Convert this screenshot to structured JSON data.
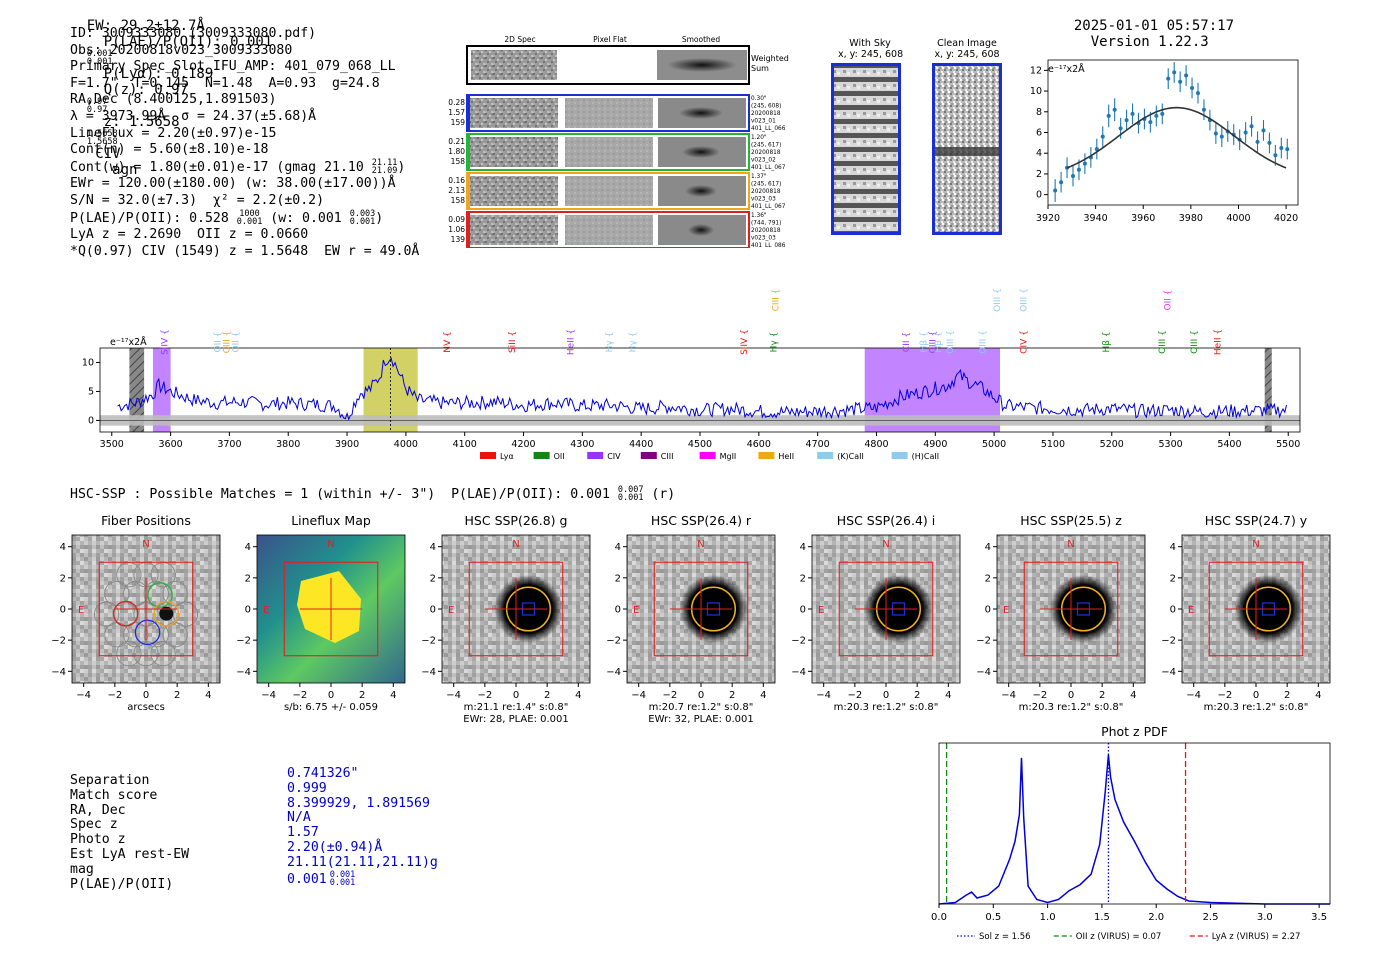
{
  "header": {
    "ew": "EW: 29.2±12.7Å",
    "plae_ratio": "P(LAE)/P(OII): 0.001",
    "plae_hi": "0.001",
    "plae_lo": "0.001",
    "plya": "P(Lyα): 0.189",
    "qz": "Q(z): 0.97",
    "qz_hi": "0.97",
    "qz_lo": "0.97",
    "z": "z: 1.5658",
    "z_hi": "1.5658",
    "z_lo": "1.5658",
    "line": "CIV",
    "class": "agn",
    "timestamp": "2025-01-01 05:57:17",
    "version": "Version 1.22.3"
  },
  "info_lines": {
    "id": "ID: 3009333080 (3009333080.pdf)",
    "obs": "Obs: 20200818v023_3009333080",
    "primary": "Primary Spec_Slot_IFU_AMP: 401_079_068_LL",
    "params": "F=1.7\"  T=0.145  N=1.48  A=0.93  g=24.8",
    "radec": "RA,Dec (8.400125,1.891503)",
    "lambda": "λ = 3973.99Å  σ = 24.37(±5.68)Å",
    "lineflux": "LineFlux = 2.20(±0.97)e-15",
    "contn": "Cont(n) = 5.60(±8.10)e-18",
    "contw": "Cont(w) = 1.80(±0.01)e-17 (gmag 21.10",
    "contw_hi": "21.11",
    "contw_lo": "21.09",
    "contw_end": ")",
    "ewr": "EWr = 120.00(±180.00) (w: 38.00(±17.00))Å",
    "sn": "S/N = 32.0(±7.3)  χ² = 2.2(±0.2)",
    "plae": "P(LAE)/P(OII): 0.528",
    "plae_hi": "1000",
    "plae_lo": "0.001",
    "plae_w": " (w: 0.001",
    "plae_w_hi": "0.003",
    "plae_w_lo": "0.001",
    "plae_end": ")",
    "lya_z": "LyA z = 2.2690  OII z = 0.0660",
    "civ": "*Q(0.97) CIV (1549) z = 1.5648  EW r = 49.0Å"
  },
  "cutouts": {
    "col_2d": "2D Spec",
    "col_flat": "Pixel Flat",
    "col_smooth": "Smoothed",
    "weighted_sum": "Weighted Sum",
    "rows": [
      {
        "n1": "0.28",
        "n2": "1.57",
        "n3": "159",
        "t1": "0.30\"",
        "t2": "(245, 608)",
        "t3": "20200818",
        "t4": "v023_01",
        "t5": "401_LL_066",
        "color": "#1a2ed6"
      },
      {
        "n1": "0.21",
        "n2": "1.80",
        "n3": "158",
        "t1": "1.20\"",
        "t2": "(245, 617)",
        "t3": "20200818",
        "t4": "v023_02",
        "t5": "401_LL_067",
        "color": "#22b53a"
      },
      {
        "n1": "0.16",
        "n2": "2.13",
        "n3": "158",
        "t1": "1.37\"",
        "t2": "(245, 617)",
        "t3": "20200818",
        "t4": "v023_03",
        "t5": "401_LL_067",
        "color": "#f0a61a"
      },
      {
        "n1": "0.09",
        "n2": "1.06",
        "n3": "139",
        "t1": "1.36\"",
        "t2": "(744, 791)",
        "t3": "20200818",
        "t4": "v023_03",
        "t5": "401_LL_086",
        "color": "#e02020"
      }
    ],
    "with_sky": "With Sky",
    "with_sky_xy": "x, y: 245, 608",
    "clean": "Clean Image",
    "clean_xy": "x, y: 245, 608"
  },
  "zoom_units": "e⁻¹⁷x2Å",
  "spectrum_units": "e⁻¹⁷x2Å",
  "spectrum_lines": [
    {
      "name": "SiIV",
      "wl": 3590,
      "color": "#9933ff",
      "row": 0
    },
    {
      "name": "OII",
      "wl": 3680,
      "color": "#8ecbee",
      "row": 0
    },
    {
      "name": "CIII",
      "wl": 3695,
      "color": "#f0a61a",
      "row": 0
    },
    {
      "name": "OII",
      "wl": 3710,
      "color": "#8ecbee",
      "row": 0
    },
    {
      "name": "NV",
      "wl": 4070,
      "color": "#ee1111",
      "row": 0
    },
    {
      "name": "SiII",
      "wl": 4180,
      "color": "#ee1111",
      "row": 0
    },
    {
      "name": "HeII",
      "wl": 4280,
      "color": "#9933ff",
      "row": 0
    },
    {
      "name": "Hγ",
      "wl": 4345,
      "color": "#8ecbee",
      "row": 0
    },
    {
      "name": "Hγ",
      "wl": 4385,
      "color": "#8ecbee",
      "row": 0
    },
    {
      "name": "SiIV",
      "wl": 4575,
      "color": "#ee1111",
      "row": 0
    },
    {
      "name": "Hγ",
      "wl": 4625,
      "color": "#118811",
      "row": 0
    },
    {
      "name": "CIII",
      "wl": 4628,
      "color": "#f0a61a",
      "row": 1
    },
    {
      "name": "CII",
      "wl": 4850,
      "color": "#9933ff",
      "row": 0
    },
    {
      "name": "Hβ",
      "wl": 4880,
      "color": "#8ecbee",
      "row": 0
    },
    {
      "name": "CIII",
      "wl": 4895,
      "color": "#9933ff",
      "row": 0
    },
    {
      "name": "Hβ",
      "wl": 4905,
      "color": "#8ecbee",
      "row": 0
    },
    {
      "name": "OIII",
      "wl": 4925,
      "color": "#8ecbee",
      "row": 0
    },
    {
      "name": "OIII",
      "wl": 4980,
      "color": "#8ecbee",
      "row": 0
    },
    {
      "name": "OIII",
      "wl": 5005,
      "color": "#8ecbee",
      "row": 1
    },
    {
      "name": "OIII",
      "wl": 5050,
      "color": "#8ecbee",
      "row": 1
    },
    {
      "name": "CIV",
      "wl": 5050,
      "color": "#ee1111",
      "row": 0
    },
    {
      "name": "Hβ",
      "wl": 5190,
      "color": "#118811",
      "row": 0
    },
    {
      "name": "OIII",
      "wl": 5285,
      "color": "#118811",
      "row": 0
    },
    {
      "name": "OII",
      "wl": 5295,
      "color": "#ee33ee",
      "row": 1
    },
    {
      "name": "OIII",
      "wl": 5340,
      "color": "#118811",
      "row": 0
    },
    {
      "name": "HeII",
      "wl": 5380,
      "color": "#ee1111",
      "row": 0
    }
  ],
  "legend": [
    {
      "label": "Lyα",
      "color": "#ee1111"
    },
    {
      "label": "OII",
      "color": "#118811"
    },
    {
      "label": "CIV",
      "color": "#9933ff"
    },
    {
      "label": "CIII",
      "color": "#800080"
    },
    {
      "label": "MgII",
      "color": "#ff00ff"
    },
    {
      "label": "HeII",
      "color": "#f0a61a"
    },
    {
      "label": "(K)CaII",
      "color": "#8ecbee"
    },
    {
      "label": "(H)CaII",
      "color": "#8ecbee"
    }
  ],
  "hsc_summary": "HSC-SSP : Possible Matches = 1 (within +/- 3\")  P(LAE)/P(OII): 0.001",
  "hsc_summary_hi": "0.007",
  "hsc_summary_lo": "0.001",
  "hsc_summary_end": " (r)",
  "panels": [
    {
      "title": "Fiber Positions",
      "cap1": "arcsecs",
      "cap2": "",
      "compass_n": "N",
      "compass_e": "E"
    },
    {
      "title": "Lineflux Map",
      "cap1": "s/b: 6.75 +/- 0.059",
      "cap2": "",
      "compass_n": "N",
      "compass_e": "E"
    },
    {
      "title": "HSC SSP(26.8) g",
      "cap1": "m:21.1  re:1.4\"  s:0.8\"",
      "cap2": "EWr: 28, PLAE: 0.001",
      "compass_n": "N",
      "compass_e": "E"
    },
    {
      "title": "HSC SSP(26.4) r",
      "cap1": "m:20.7  re:1.2\"  s:0.8\"",
      "cap2": "EWr: 32, PLAE: 0.001",
      "compass_n": "N",
      "compass_e": "E"
    },
    {
      "title": "HSC SSP(26.4) i",
      "cap1": "m:20.3  re:1.2\"  s:0.8\"",
      "cap2": "",
      "compass_n": "N",
      "compass_e": "E"
    },
    {
      "title": "HSC SSP(25.5) z",
      "cap1": "m:20.3  re:1.2\"  s:0.8\"",
      "cap2": "",
      "compass_n": "N",
      "compass_e": "E"
    },
    {
      "title": "HSC SSP(24.7) y",
      "cap1": "m:20.3  re:1.2\"  s:0.8\"",
      "cap2": "",
      "compass_n": "N",
      "compass_e": "E"
    }
  ],
  "match_table": {
    "labels": [
      "Separation",
      "Match score",
      "RA, Dec",
      "Spec z",
      "Photo z",
      "Est LyA rest-EW",
      "mag",
      "P(LAE)/P(OII)"
    ],
    "values": [
      "0.741326\"",
      "0.999",
      "8.399929, 1.891569",
      "N/A",
      "1.57",
      "2.20(±0.94)Å",
      "21.11(21.11,21.11)g",
      "0.001"
    ],
    "plae_hi": "0.001",
    "plae_lo": "0.001"
  },
  "chart_data": [
    {
      "type": "scatter",
      "title": "",
      "ylabel": "e⁻¹⁷x2Å",
      "xlim": [
        3920,
        4025
      ],
      "ylim": [
        -1,
        13
      ],
      "xticks": [
        3920,
        3940,
        3960,
        3980,
        4000,
        4020
      ],
      "yticks": [
        0,
        2,
        4,
        6,
        8,
        10,
        12
      ],
      "points": {
        "x": [
          3923,
          3925.5,
          3928,
          3930.5,
          3933,
          3935.5,
          3938,
          3940.5,
          3943,
          3945.5,
          3948,
          3950.5,
          3953,
          3955.5,
          3958,
          3960.5,
          3963,
          3965.5,
          3968,
          3970.5,
          3973,
          3975.5,
          3978,
          3980.5,
          3983,
          3985.5,
          3988,
          3990.5,
          3993,
          3995.5,
          3998,
          4000.5,
          4003,
          4005.5,
          4008,
          4010.5,
          4013,
          4015.5,
          4018,
          4020.5
        ],
        "y": [
          0.4,
          1.2,
          2.6,
          1.8,
          2.4,
          3.0,
          3.6,
          4.4,
          5.6,
          7.6,
          8.2,
          6.4,
          7.2,
          7.8,
          6.9,
          7.3,
          7.0,
          7.6,
          7.8,
          11.2,
          11.8,
          10.9,
          11.5,
          10.3,
          9.8,
          8.2,
          7.2,
          5.9,
          5.6,
          6.1,
          5.8,
          5.3,
          6.0,
          6.6,
          5.1,
          6.2,
          5.0,
          3.8,
          4.5,
          4.4
        ],
        "err": [
          1.1,
          1.0,
          1.0,
          1.0,
          1.0,
          1.0,
          1.0,
          1.0,
          1.0,
          1.1,
          1.1,
          1.0,
          1.0,
          1.0,
          1.0,
          1.0,
          1.0,
          1.0,
          1.0,
          1.0,
          1.0,
          1.0,
          1.0,
          1.0,
          1.0,
          1.0,
          1.0,
          1.0,
          1.0,
          1.0,
          1.0,
          1.0,
          1.0,
          1.0,
          1.0,
          1.0,
          1.0,
          1.0,
          1.0,
          1.0
        ]
      },
      "fit": {
        "model": "gaussian",
        "center": 3973.99,
        "sigma": 24.37,
        "amplitude": 7.0,
        "baseline": 1.4
      }
    },
    {
      "type": "line",
      "title": "",
      "ylabel": "e⁻¹⁷x2Å",
      "xlim": [
        3480,
        5520
      ],
      "ylim": [
        -2,
        12.5
      ],
      "xticks": [
        3500,
        3600,
        3700,
        3800,
        3900,
        4000,
        4100,
        4200,
        4300,
        4400,
        4500,
        4600,
        4700,
        4800,
        4900,
        5000,
        5100,
        5200,
        5300,
        5400,
        5500
      ],
      "yticks": [
        0,
        5,
        10
      ],
      "series": [
        {
          "name": "spectrum",
          "color": "#0000dd",
          "x": [
            3510,
            3540,
            3570,
            3580,
            3600,
            3640,
            3680,
            3720,
            3760,
            3800,
            3840,
            3880,
            3900,
            3920,
            3940,
            3955,
            3965,
            3975,
            3985,
            4000,
            4020,
            4060,
            4100,
            4150,
            4200,
            4250,
            4300,
            4350,
            4400,
            4450,
            4500,
            4550,
            4600,
            4650,
            4700,
            4750,
            4800,
            4840,
            4880,
            4900,
            4920,
            4940,
            4960,
            4980,
            5000,
            5020,
            5060,
            5100,
            5150,
            5200,
            5250,
            5300,
            5350,
            5400,
            5450,
            5500
          ],
          "y": [
            2.5,
            3.0,
            4.5,
            6.0,
            5.0,
            3.5,
            3.0,
            3.2,
            2.8,
            3.0,
            2.8,
            2.5,
            0.5,
            4.5,
            5.5,
            7.5,
            10.5,
            11.2,
            9.0,
            5.5,
            3.5,
            3.0,
            3.0,
            3.2,
            2.6,
            3.0,
            2.5,
            2.6,
            2.0,
            2.4,
            1.8,
            2.0,
            1.6,
            1.4,
            1.6,
            1.8,
            2.2,
            4.0,
            5.0,
            5.5,
            6.0,
            7.8,
            6.5,
            5.5,
            4.0,
            2.5,
            2.2,
            2.0,
            1.8,
            2.0,
            1.6,
            1.8,
            1.5,
            1.6,
            1.7,
            1.8
          ]
        }
      ],
      "shaded": [
        {
          "from": 3530,
          "to": 3555,
          "color": "#888888",
          "kind": "hatched"
        },
        {
          "from": 3570,
          "to": 3600,
          "color": "#9933ff",
          "kind": "fill"
        },
        {
          "from": 3928,
          "to": 4020,
          "color": "#b3b300",
          "kind": "fill"
        },
        {
          "from": 4780,
          "to": 5010,
          "color": "#9933ff",
          "kind": "fill"
        },
        {
          "from": 5460,
          "to": 5472,
          "color": "#888888",
          "kind": "hatched"
        }
      ],
      "marker_line": 3974
    },
    {
      "type": "line",
      "title": "Phot z PDF",
      "xlim": [
        0.0,
        3.6
      ],
      "ylim": [
        0,
        1.08
      ],
      "xticks": [
        0.0,
        0.5,
        1.0,
        1.5,
        2.0,
        2.5,
        3.0,
        3.5
      ],
      "series": [
        {
          "name": "pdf",
          "color": "#0000dd",
          "x": [
            0.0,
            0.15,
            0.25,
            0.3,
            0.35,
            0.45,
            0.55,
            0.65,
            0.7,
            0.74,
            0.76,
            0.78,
            0.82,
            0.9,
            1.0,
            1.1,
            1.2,
            1.3,
            1.4,
            1.48,
            1.53,
            1.56,
            1.58,
            1.62,
            1.7,
            1.8,
            1.9,
            2.0,
            2.1,
            2.2,
            2.3,
            2.5,
            3.0,
            3.6
          ],
          "y": [
            0.0,
            0.01,
            0.06,
            0.08,
            0.04,
            0.06,
            0.12,
            0.3,
            0.42,
            0.6,
            0.98,
            0.58,
            0.12,
            0.03,
            0.01,
            0.03,
            0.09,
            0.13,
            0.2,
            0.4,
            0.75,
            1.0,
            0.85,
            0.7,
            0.55,
            0.42,
            0.28,
            0.16,
            0.1,
            0.05,
            0.02,
            0.01,
            0.0,
            0.0
          ]
        }
      ],
      "vlines": [
        {
          "x": 1.56,
          "color": "#0000dd",
          "style": "dotted",
          "label": "Sol z = 1.56"
        },
        {
          "x": 0.07,
          "color": "#118811",
          "style": "dashed",
          "label": "OII z (VIRUS) = 0.07"
        },
        {
          "x": 2.27,
          "color": "#ee1111",
          "style": "dashed",
          "label": "LyA z (VIRUS) = 2.27"
        }
      ]
    }
  ]
}
